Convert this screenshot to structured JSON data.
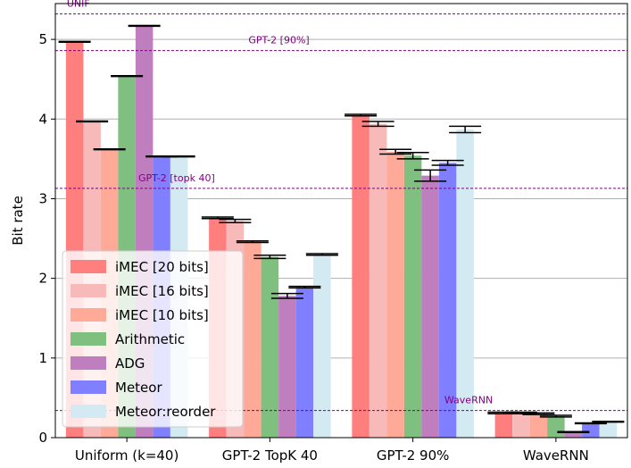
{
  "chart_data": {
    "type": "bar",
    "title": "",
    "xlabel": "",
    "ylabel": "Bit rate",
    "ylim": [
      0,
      5.45
    ],
    "yticks": [
      0,
      1,
      2,
      3,
      4,
      5
    ],
    "grid": "y",
    "categories": [
      "Uniform (k=40)",
      "GPT-2 TopK 40",
      "GPT-2 90%",
      "WaveRNN"
    ],
    "series": [
      {
        "name": "iMEC [20 bits]",
        "color": "#ff7f7f",
        "values": [
          4.97,
          2.76,
          4.05,
          0.31
        ],
        "errors": [
          0.0,
          0.01,
          0.01,
          0.01
        ]
      },
      {
        "name": "iMEC [16 bits]",
        "color": "#f8b9b9",
        "values": [
          3.97,
          2.72,
          3.94,
          0.31
        ],
        "errors": [
          0.0,
          0.02,
          0.03,
          0.01
        ]
      },
      {
        "name": "iMEC [10 bits]",
        "color": "#ffaa98",
        "values": [
          3.62,
          2.46,
          3.59,
          0.3
        ],
        "errors": [
          0.0,
          0.01,
          0.03,
          0.01
        ]
      },
      {
        "name": "Arithmetic",
        "color": "#7fbf7f",
        "values": [
          4.54,
          2.27,
          3.54,
          0.27
        ],
        "errors": [
          0.0,
          0.02,
          0.04,
          0.01
        ]
      },
      {
        "name": "ADG",
        "color": "#bf7fbf",
        "values": [
          5.17,
          1.78,
          3.29,
          0.07
        ],
        "errors": [
          0.0,
          0.03,
          0.07,
          0.0
        ]
      },
      {
        "name": "Meteor",
        "color": "#7f7fff",
        "values": [
          3.53,
          1.89,
          3.45,
          0.18
        ],
        "errors": [
          0.0,
          0.01,
          0.03,
          0.0
        ]
      },
      {
        "name": "Meteor:reorder",
        "color": "#d4eaf2",
        "values": [
          3.53,
          2.3,
          3.87,
          0.2
        ],
        "errors": [
          0.0,
          0.01,
          0.04,
          0.0
        ]
      }
    ],
    "reference_lines": [
      {
        "label": "UNIF",
        "y": 5.32,
        "label_x": 0.08
      },
      {
        "label": "GPT-2 [90%]",
        "y": 4.86,
        "label_x": 1.35
      },
      {
        "label": "GPT-2 [topk 40]",
        "y": 3.13,
        "label_x": 0.58
      },
      {
        "label": "WaveRNN",
        "y": 0.34,
        "label_x": 2.72
      }
    ],
    "reference_color": "#800080",
    "legend": "lower-left"
  }
}
